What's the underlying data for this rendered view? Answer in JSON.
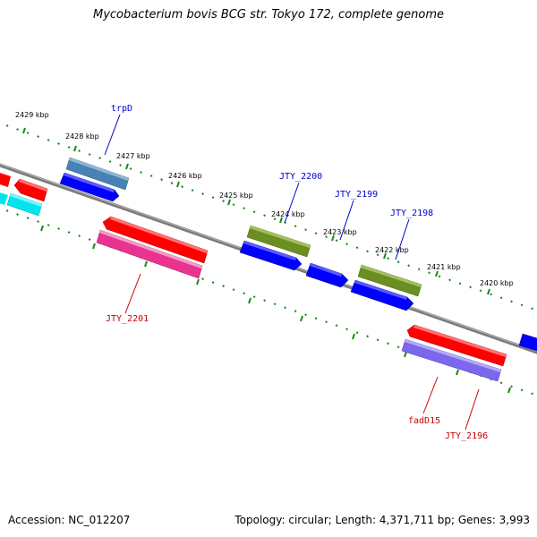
{
  "title": "Mycobacterium bovis BCG str. Tokyo 172, complete genome",
  "footer": {
    "accession": "Accession: NC_012207",
    "summary": "Topology: circular; Length: 4,371,711 bp; Genes: 3,993"
  },
  "colors": {
    "background": "#ffffff",
    "genome_line": "#808080",
    "tick": "#1a8a1a",
    "plus_label": "#0000cc",
    "minus_label": "#cc0000"
  },
  "kbp_labels": [
    "2429 kbp",
    "2428 kbp",
    "2427 kbp",
    "2426 kbp",
    "2425 kbp",
    "2424 kbp",
    "2423 kbp",
    "2422 kbp",
    "2421 kbp",
    "2420 kbp"
  ],
  "genes": [
    {
      "name": "trpD",
      "strand": "+",
      "color": "#4682b4"
    },
    {
      "name": "JTY_2200",
      "strand": "+",
      "color": "#6b8e23"
    },
    {
      "name": "JTY_2199",
      "strand": "+",
      "color": "#0000ff"
    },
    {
      "name": "JTY_2198",
      "strand": "+",
      "color": "#6b8e23"
    },
    {
      "name": "JTY_2201",
      "strand": "-",
      "color": "#e8338f"
    },
    {
      "name": "fadD15",
      "strand": "-",
      "color": "#ff0000"
    },
    {
      "name": "JTY_2196",
      "strand": "-",
      "color": "#7b68ee"
    }
  ]
}
